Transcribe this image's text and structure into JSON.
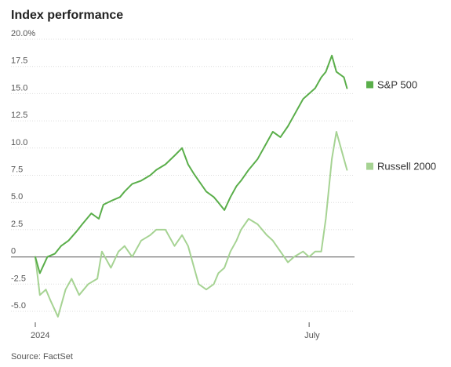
{
  "chart_data": {
    "type": "line",
    "title": "Index performance",
    "source": "Source: FactSet",
    "ylim": [
      -5.0,
      20.0
    ],
    "y_ticks": [
      "20.0%",
      "17.5",
      "15.0",
      "12.5",
      "10.0",
      "7.5",
      "5.0",
      "2.5",
      "0",
      "-2.5",
      "-5.0"
    ],
    "y_tick_values": [
      20.0,
      17.5,
      15.0,
      12.5,
      10.0,
      7.5,
      5.0,
      2.5,
      0,
      -2.5,
      -5.0
    ],
    "x_range": [
      "2024-01-02",
      "2024-07-31"
    ],
    "x_ticks": [
      {
        "label": "2024",
        "date": "2024-01-02"
      },
      {
        "label": "July",
        "date": "2024-07-01"
      }
    ],
    "grid": true,
    "legend_placement": "right",
    "series": [
      {
        "name": "S&P 500",
        "color": "#5aae4a",
        "points": [
          [
            "2024-01-02",
            0.0
          ],
          [
            "2024-01-05",
            -1.5
          ],
          [
            "2024-01-10",
            0.0
          ],
          [
            "2024-01-15",
            0.3
          ],
          [
            "2024-01-19",
            1.0
          ],
          [
            "2024-01-24",
            1.5
          ],
          [
            "2024-01-29",
            2.3
          ],
          [
            "2024-02-02",
            3.0
          ],
          [
            "2024-02-08",
            4.0
          ],
          [
            "2024-02-13",
            3.5
          ],
          [
            "2024-02-16",
            4.8
          ],
          [
            "2024-02-22",
            5.2
          ],
          [
            "2024-02-27",
            5.5
          ],
          [
            "2024-03-01",
            6.0
          ],
          [
            "2024-03-06",
            6.7
          ],
          [
            "2024-03-12",
            7.0
          ],
          [
            "2024-03-18",
            7.5
          ],
          [
            "2024-03-22",
            8.0
          ],
          [
            "2024-03-28",
            8.5
          ],
          [
            "2024-04-03",
            9.3
          ],
          [
            "2024-04-08",
            10.0
          ],
          [
            "2024-04-12",
            8.5
          ],
          [
            "2024-04-16",
            7.6
          ],
          [
            "2024-04-19",
            7.0
          ],
          [
            "2024-04-24",
            6.0
          ],
          [
            "2024-04-29",
            5.5
          ],
          [
            "2024-05-02",
            5.0
          ],
          [
            "2024-05-06",
            4.3
          ],
          [
            "2024-05-10",
            5.5
          ],
          [
            "2024-05-14",
            6.5
          ],
          [
            "2024-05-17",
            7.0
          ],
          [
            "2024-05-22",
            8.0
          ],
          [
            "2024-05-28",
            9.0
          ],
          [
            "2024-06-03",
            10.5
          ],
          [
            "2024-06-07",
            11.5
          ],
          [
            "2024-06-12",
            11.0
          ],
          [
            "2024-06-17",
            12.0
          ],
          [
            "2024-06-21",
            13.0
          ],
          [
            "2024-06-27",
            14.5
          ],
          [
            "2024-07-01",
            15.0
          ],
          [
            "2024-07-05",
            15.5
          ],
          [
            "2024-07-09",
            16.5
          ],
          [
            "2024-07-12",
            17.0
          ],
          [
            "2024-07-16",
            18.5
          ],
          [
            "2024-07-19",
            17.0
          ],
          [
            "2024-07-24",
            16.5
          ],
          [
            "2024-07-26",
            15.5
          ]
        ]
      },
      {
        "name": "Russell 2000",
        "color": "#a6d393",
        "points": [
          [
            "2024-01-02",
            0.0
          ],
          [
            "2024-01-05",
            -3.5
          ],
          [
            "2024-01-09",
            -3.0
          ],
          [
            "2024-01-12",
            -4.0
          ],
          [
            "2024-01-17",
            -5.5
          ],
          [
            "2024-01-22",
            -3.0
          ],
          [
            "2024-01-26",
            -2.0
          ],
          [
            "2024-01-31",
            -3.5
          ],
          [
            "2024-02-06",
            -2.5
          ],
          [
            "2024-02-12",
            -2.0
          ],
          [
            "2024-02-15",
            0.5
          ],
          [
            "2024-02-21",
            -1.0
          ],
          [
            "2024-02-26",
            0.5
          ],
          [
            "2024-03-01",
            1.0
          ],
          [
            "2024-03-06",
            0.0
          ],
          [
            "2024-03-12",
            1.5
          ],
          [
            "2024-03-18",
            2.0
          ],
          [
            "2024-03-22",
            2.5
          ],
          [
            "2024-03-28",
            2.5
          ],
          [
            "2024-04-03",
            1.0
          ],
          [
            "2024-04-08",
            2.0
          ],
          [
            "2024-04-12",
            1.0
          ],
          [
            "2024-04-16",
            -1.0
          ],
          [
            "2024-04-19",
            -2.5
          ],
          [
            "2024-04-24",
            -3.0
          ],
          [
            "2024-04-29",
            -2.5
          ],
          [
            "2024-05-02",
            -1.5
          ],
          [
            "2024-05-06",
            -1.0
          ],
          [
            "2024-05-10",
            0.5
          ],
          [
            "2024-05-14",
            1.5
          ],
          [
            "2024-05-17",
            2.5
          ],
          [
            "2024-05-22",
            3.5
          ],
          [
            "2024-05-28",
            3.0
          ],
          [
            "2024-06-03",
            2.0
          ],
          [
            "2024-06-07",
            1.5
          ],
          [
            "2024-06-12",
            0.5
          ],
          [
            "2024-06-17",
            -0.5
          ],
          [
            "2024-06-21",
            0.0
          ],
          [
            "2024-06-27",
            0.5
          ],
          [
            "2024-07-01",
            0.0
          ],
          [
            "2024-07-05",
            0.5
          ],
          [
            "2024-07-09",
            0.5
          ],
          [
            "2024-07-12",
            3.5
          ],
          [
            "2024-07-16",
            9.0
          ],
          [
            "2024-07-19",
            11.5
          ],
          [
            "2024-07-24",
            9.0
          ],
          [
            "2024-07-26",
            8.0
          ]
        ]
      }
    ]
  }
}
